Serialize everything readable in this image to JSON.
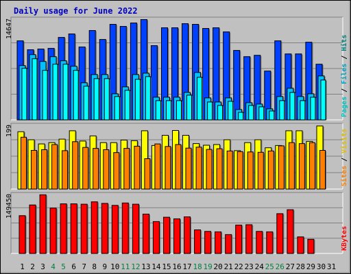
{
  "chart_data": [
    {
      "type": "bar",
      "title": "Daily usage for June 2022",
      "ymax_label": "14647",
      "ylabel_parts": [
        "Pages",
        " / ",
        "Files",
        " / ",
        "Hits"
      ],
      "categories": [
        "1",
        "2",
        "3",
        "4",
        "5",
        "6",
        "7",
        "8",
        "9",
        "10",
        "11",
        "12",
        "13",
        "14",
        "15",
        "16",
        "17",
        "18",
        "19",
        "20",
        "21",
        "22",
        "23",
        "24",
        "25",
        "26",
        "27",
        "28",
        "29",
        "30",
        "31"
      ],
      "weekend_days": [
        "4",
        "5",
        "11",
        "12",
        "18",
        "19",
        "25",
        "26"
      ],
      "colors": {
        "hits": "#0040ff",
        "files": "#00c0ff",
        "pages": "#00ffff"
      },
      "ylim": [
        0,
        14647
      ],
      "series": [
        {
          "name": "Hits",
          "values": [
            11500,
            10200,
            10300,
            10400,
            12000,
            12500,
            10600,
            13000,
            11700,
            13900,
            13600,
            14100,
            14600,
            10800,
            13400,
            13400,
            14000,
            13900,
            13300,
            13400,
            12800,
            10100,
            9200,
            9400,
            7100,
            11500,
            9600,
            9600,
            11300,
            8100,
            0
          ]
        },
        {
          "name": "Files",
          "values": [
            7900,
            9500,
            8500,
            9200,
            8600,
            7800,
            5400,
            6600,
            6600,
            3800,
            4800,
            6600,
            6800,
            3300,
            3300,
            3300,
            4000,
            6900,
            3200,
            2600,
            3200,
            1500,
            2500,
            2300,
            1600,
            3400,
            4600,
            3400,
            3800,
            6400,
            0
          ]
        },
        {
          "name": "Pages",
          "values": [
            7500,
            8900,
            7200,
            8100,
            8100,
            7200,
            4900,
            6000,
            6000,
            3400,
            4300,
            5900,
            6300,
            2800,
            2800,
            2800,
            3600,
            6200,
            2600,
            2100,
            2700,
            1100,
            2100,
            1900,
            1300,
            2800,
            4000,
            2800,
            3300,
            5800,
            0
          ]
        }
      ]
    },
    {
      "type": "bar",
      "ymax_label": "199",
      "ylabel_parts": [
        "Sites",
        " / ",
        "Visits"
      ],
      "categories": [
        "1",
        "2",
        "3",
        "4",
        "5",
        "6",
        "7",
        "8",
        "9",
        "10",
        "11",
        "12",
        "13",
        "14",
        "15",
        "16",
        "17",
        "18",
        "19",
        "20",
        "21",
        "22",
        "23",
        "24",
        "25",
        "26",
        "27",
        "28",
        "29",
        "30",
        "31"
      ],
      "colors": {
        "visits": "#ffff00",
        "sites": "#ff8000"
      },
      "ylim": [
        0,
        199
      ],
      "series": [
        {
          "name": "Visits",
          "values": [
            179,
            154,
            141,
            145,
            156,
            182,
            150,
            166,
            145,
            145,
            153,
            151,
            182,
            136,
            168,
            183,
            168,
            142,
            137,
            139,
            154,
            120,
            145,
            154,
            129,
            136,
            182,
            182,
            149,
            197,
            0
          ]
        },
        {
          "name": "Sites",
          "values": [
            162,
            121,
            123,
            139,
            120,
            148,
            130,
            127,
            123,
            114,
            127,
            134,
            95,
            141,
            133,
            139,
            128,
            131,
            124,
            126,
            119,
            117,
            116,
            115,
            119,
            135,
            145,
            142,
            145,
            121,
            0
          ]
        }
      ]
    },
    {
      "type": "bar",
      "ymax_label": "149450",
      "ylabel_parts": [
        "KBytes"
      ],
      "categories": [
        "1",
        "2",
        "3",
        "4",
        "5",
        "6",
        "7",
        "8",
        "9",
        "10",
        "11",
        "12",
        "13",
        "14",
        "15",
        "16",
        "17",
        "18",
        "19",
        "20",
        "21",
        "22",
        "23",
        "24",
        "25",
        "26",
        "27",
        "28",
        "29",
        "30",
        "31"
      ],
      "colors": {
        "kbytes": "#ff0000"
      },
      "ylim": [
        0,
        149450
      ],
      "series": [
        {
          "name": "KBytes",
          "values": [
            96000,
            123000,
            149000,
            115000,
            126000,
            126000,
            125000,
            131000,
            127000,
            122000,
            128000,
            125000,
            100000,
            81000,
            92000,
            88000,
            93000,
            60000,
            56000,
            55000,
            48000,
            72000,
            73000,
            56000,
            55000,
            101000,
            111000,
            42000,
            36000,
            0,
            0
          ]
        }
      ]
    }
  ]
}
